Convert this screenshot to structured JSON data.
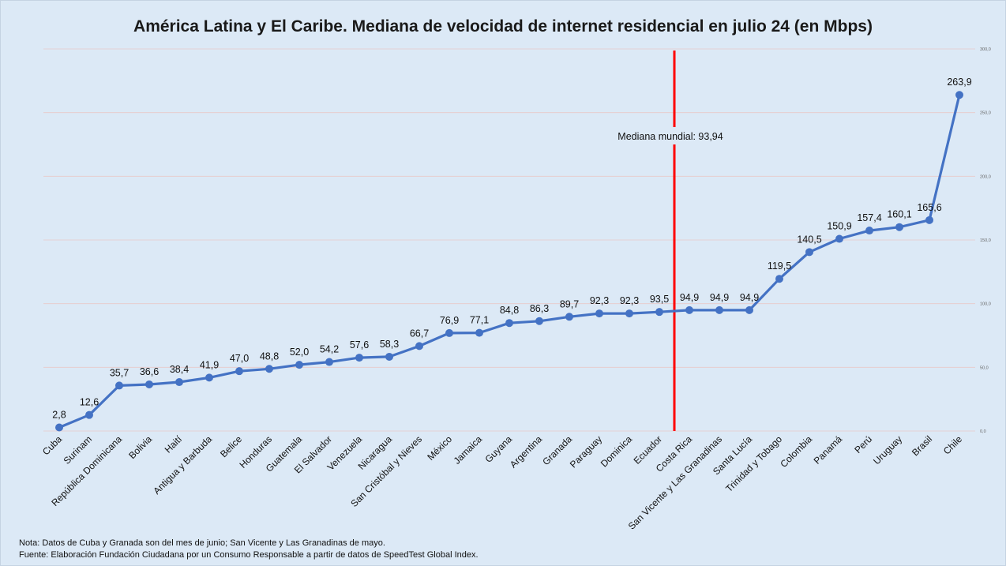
{
  "chart_data": {
    "type": "line",
    "title": "América Latina y El Caribe. Mediana de velocidad de internet residencial en julio 24 (en Mbps)",
    "xlabel": "",
    "ylabel": "",
    "ylim": [
      0,
      300
    ],
    "yticks": [
      "0,0",
      "50,0",
      "100,0",
      "150,0",
      "200,0",
      "250,0",
      "300,0"
    ],
    "grid": true,
    "legend": "none",
    "categories": [
      "Cuba",
      "Surinam",
      "República Dominicana",
      "Bolivia",
      "Haití",
      "Antigua y Barbuda",
      "Belice",
      "Honduras",
      "Guatemala",
      "El Salvador",
      "Venezuela",
      "Nicaragua",
      "San Cristóbal y Nieves",
      "México",
      "Jamaica",
      "Guyana",
      "Argentina",
      "Granada",
      "Paraguay",
      "Dominica",
      "Ecuador",
      "Costa Rica",
      "San Vicente y Las Granadinas",
      "Santa Lucía",
      "Trinidad y Tobago",
      "Colombia",
      "Panamá",
      "Perú",
      "Uruguay",
      "Brasil",
      "Chile"
    ],
    "values": [
      2.8,
      12.6,
      35.7,
      36.6,
      38.4,
      41.9,
      47.0,
      48.8,
      52.0,
      54.2,
      57.6,
      58.3,
      66.7,
      76.9,
      77.1,
      84.8,
      86.3,
      89.7,
      92.3,
      92.3,
      93.5,
      94.9,
      94.9,
      94.9,
      119.5,
      140.5,
      150.9,
      157.4,
      160.1,
      165.6,
      263.9
    ],
    "value_labels": [
      "2,8",
      "12,6",
      "35,7",
      "36,6",
      "38,4",
      "41,9",
      "47,0",
      "48,8",
      "52,0",
      "54,2",
      "57,6",
      "58,3",
      "66,7",
      "76,9",
      "77,1",
      "84,8",
      "86,3",
      "89,7",
      "92,3",
      "92,3",
      "93,5",
      "94,9",
      "94,9",
      "94,9",
      "119,5",
      "140,5",
      "150,9",
      "157,4",
      "160,1",
      "165,6",
      "263,9"
    ],
    "line_color": "#4472c4",
    "reference_line": {
      "label": "Mediana mundial: 93,94",
      "value": 93.94,
      "color": "#ff0000"
    }
  },
  "notes": {
    "line1": "Nota: Datos de Cuba y Granada son del mes de junio; San Vicente y Las Granadinas de mayo.",
    "line2": "Fuente: Elaboración Fundación Ciudadana por un Consumo Responsable a partir de datos de SpeedTest Global Index."
  }
}
